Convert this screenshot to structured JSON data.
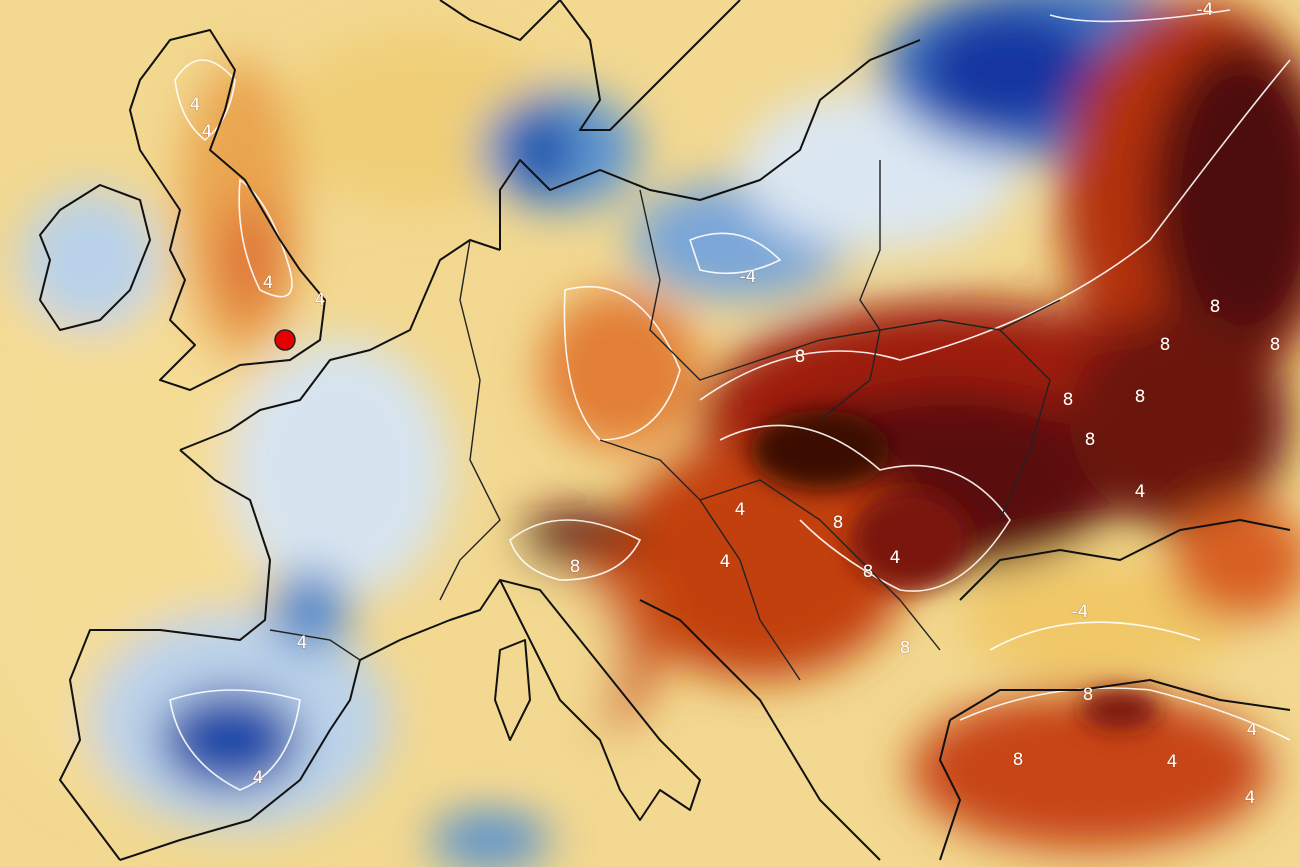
{
  "contour_labels": [
    "4",
    "4",
    "4",
    "4",
    "-4",
    "-4",
    "8",
    "8",
    "8",
    "8",
    "8",
    "8",
    "8",
    "4",
    "4",
    "8",
    "4",
    "8",
    "8",
    "4",
    "-4",
    "4",
    "4",
    "8",
    "8",
    "8",
    "4",
    "4",
    "4"
  ]
}
